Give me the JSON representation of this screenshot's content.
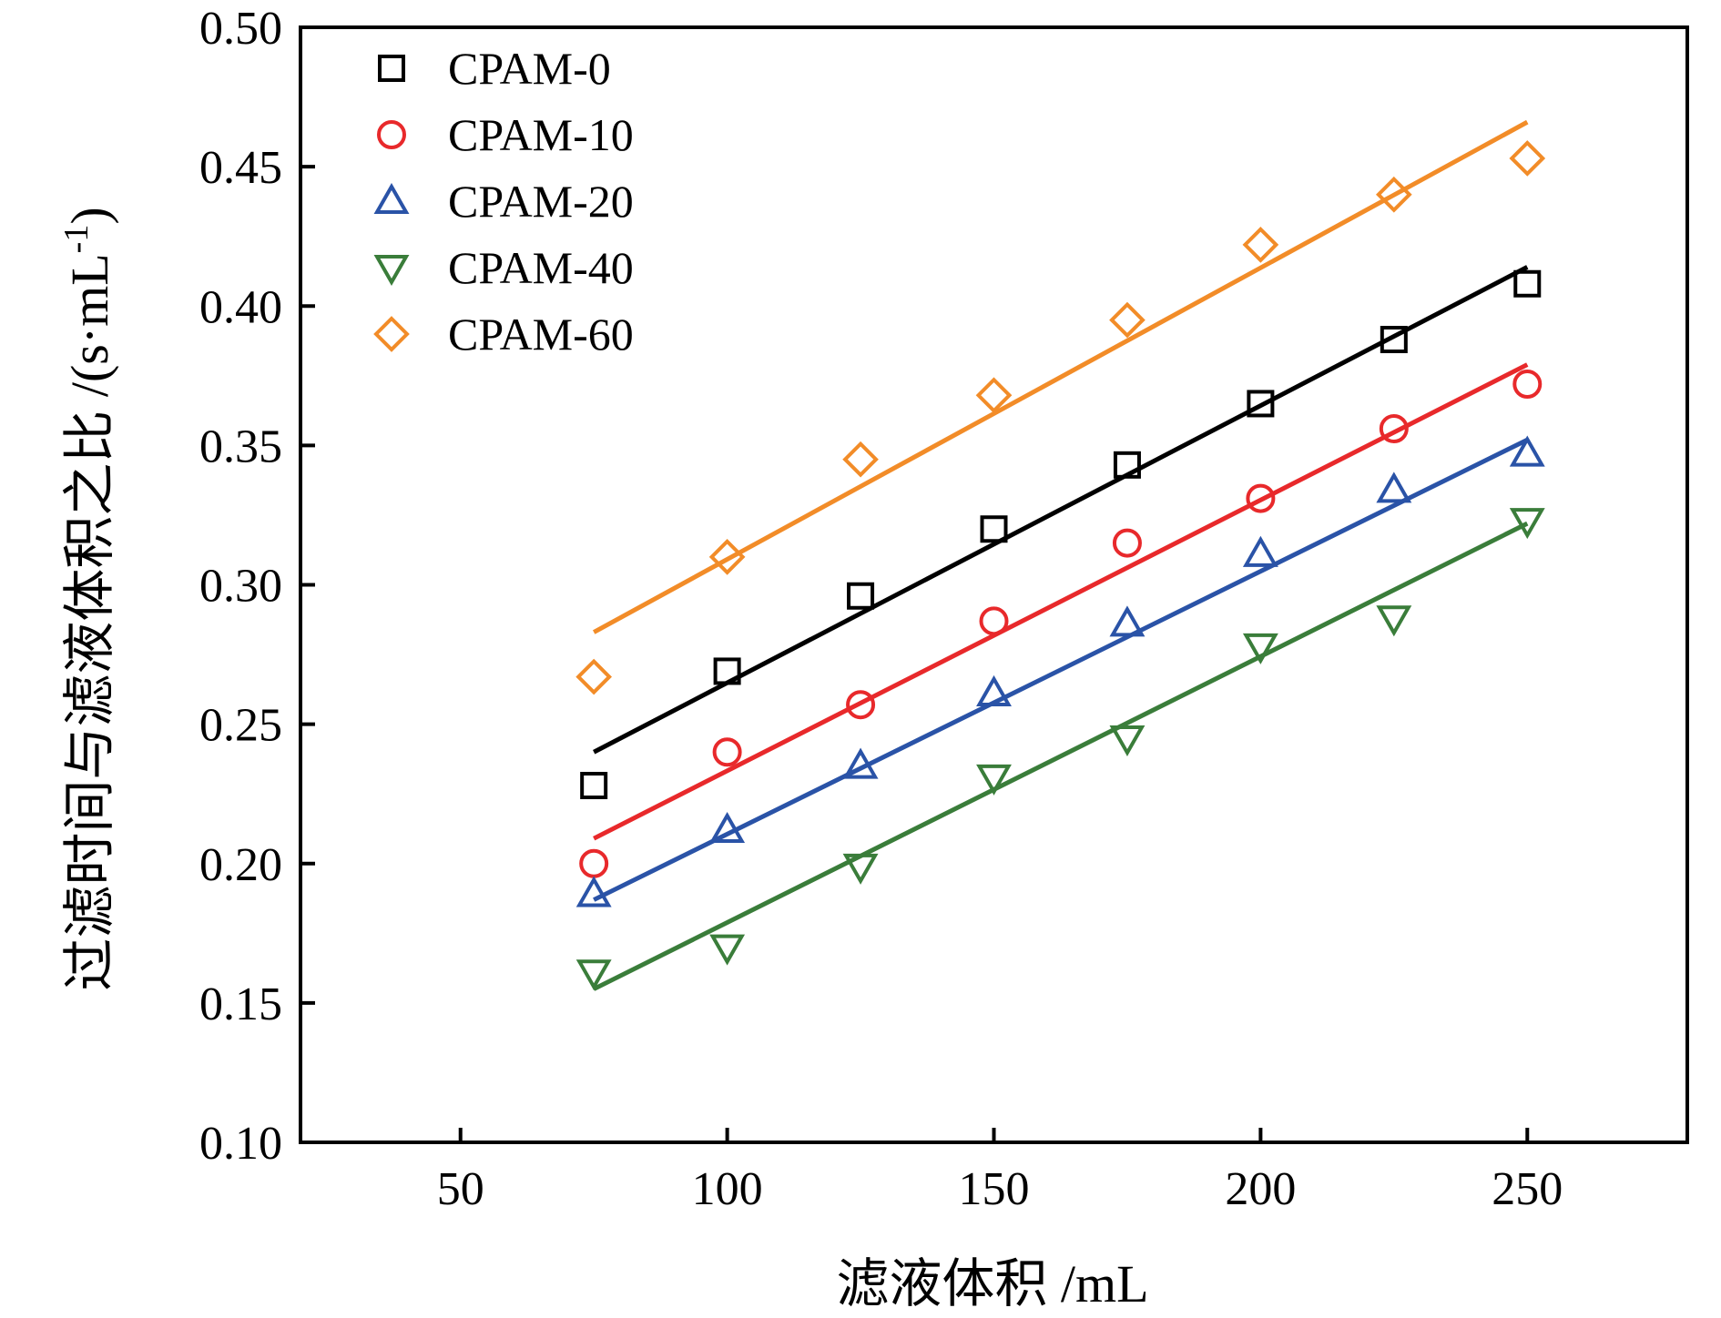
{
  "chart_data": {
    "type": "scatter",
    "title": "",
    "xlabel": "滤液体积 /mL",
    "ylabel_main": "过滤时间与滤液体积之比 /(s·mL",
    "ylabel_sup": "-1",
    "ylabel_close": ")",
    "xlim": [
      20,
      280
    ],
    "ylim": [
      0.1,
      0.5
    ],
    "xticks": [
      50,
      100,
      150,
      200,
      250
    ],
    "xtick_labels": [
      "50",
      "100",
      "150",
      "200",
      "250"
    ],
    "yticks": [
      0.1,
      0.15,
      0.2,
      0.25,
      0.3,
      0.35,
      0.4,
      0.45,
      0.5
    ],
    "ytick_labels": [
      "0.10",
      "0.15",
      "0.20",
      "0.25",
      "0.30",
      "0.35",
      "0.40",
      "0.45",
      "0.50"
    ],
    "grid": false,
    "legend_position": "top-left",
    "x": [
      75,
      100,
      125,
      150,
      175,
      200,
      225,
      250
    ],
    "series": [
      {
        "name": "CPAM-0",
        "marker": "square",
        "color": "#000000",
        "values": [
          0.228,
          0.269,
          0.296,
          0.32,
          0.343,
          0.365,
          0.388,
          0.408
        ],
        "fit": [
          [
            75,
            0.24
          ],
          [
            250,
            0.414
          ]
        ]
      },
      {
        "name": "CPAM-10",
        "marker": "circle",
        "color": "#e8292b",
        "values": [
          0.2,
          0.24,
          0.257,
          0.287,
          0.315,
          0.331,
          0.356,
          0.372
        ],
        "fit": [
          [
            75,
            0.209
          ],
          [
            250,
            0.379
          ]
        ]
      },
      {
        "name": "CPAM-20",
        "marker": "triangle-up",
        "color": "#2a53a7",
        "values": [
          0.189,
          0.212,
          0.235,
          0.261,
          0.286,
          0.311,
          0.334,
          0.347
        ],
        "fit": [
          [
            75,
            0.187
          ],
          [
            250,
            0.352
          ]
        ]
      },
      {
        "name": "CPAM-40",
        "marker": "triangle-down",
        "color": "#3a7d3a",
        "values": [
          0.161,
          0.17,
          0.199,
          0.231,
          0.245,
          0.278,
          0.288,
          0.323
        ],
        "fit": [
          [
            75,
            0.155
          ],
          [
            250,
            0.322
          ]
        ]
      },
      {
        "name": "CPAM-60",
        "marker": "diamond",
        "color": "#f28c28",
        "values": [
          0.267,
          0.31,
          0.345,
          0.368,
          0.395,
          0.422,
          0.44,
          0.453
        ],
        "fit": [
          [
            75,
            0.283
          ],
          [
            250,
            0.466
          ]
        ]
      }
    ]
  }
}
